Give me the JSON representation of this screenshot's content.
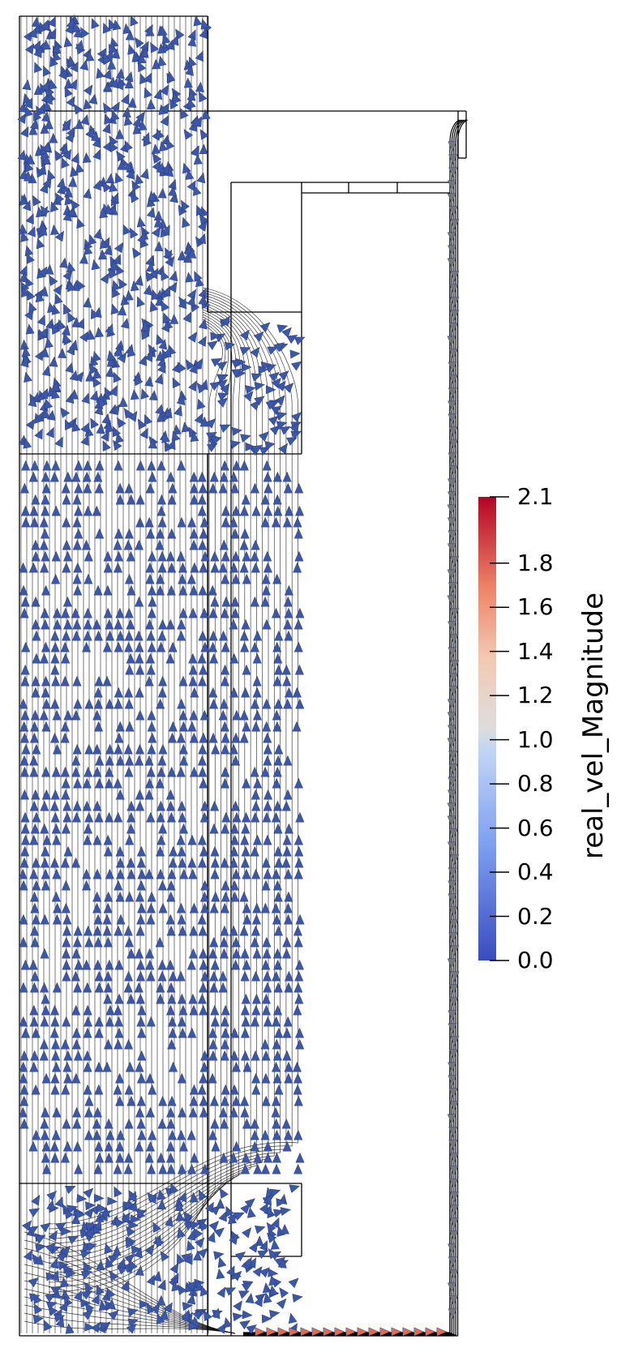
{
  "legend": {
    "title": "real_vel_Magnitude",
    "ticks": [
      "2.1",
      "1.8",
      "1.6",
      "1.4",
      "1.2",
      "1.0",
      "0.8",
      "0.6",
      "0.4",
      "0.2",
      "0.0"
    ],
    "colormap": {
      "low": "#3a4cc0",
      "mid": "#dddddd",
      "high": "#b40426"
    }
  },
  "colors": {
    "arrow": "#3d57a8",
    "arrow_outline": "#1f2f6e",
    "streamline": "#000000",
    "boundary": "#000000",
    "return_arrow": "#777777",
    "high_speed_arrow": "#e06a4e"
  }
}
